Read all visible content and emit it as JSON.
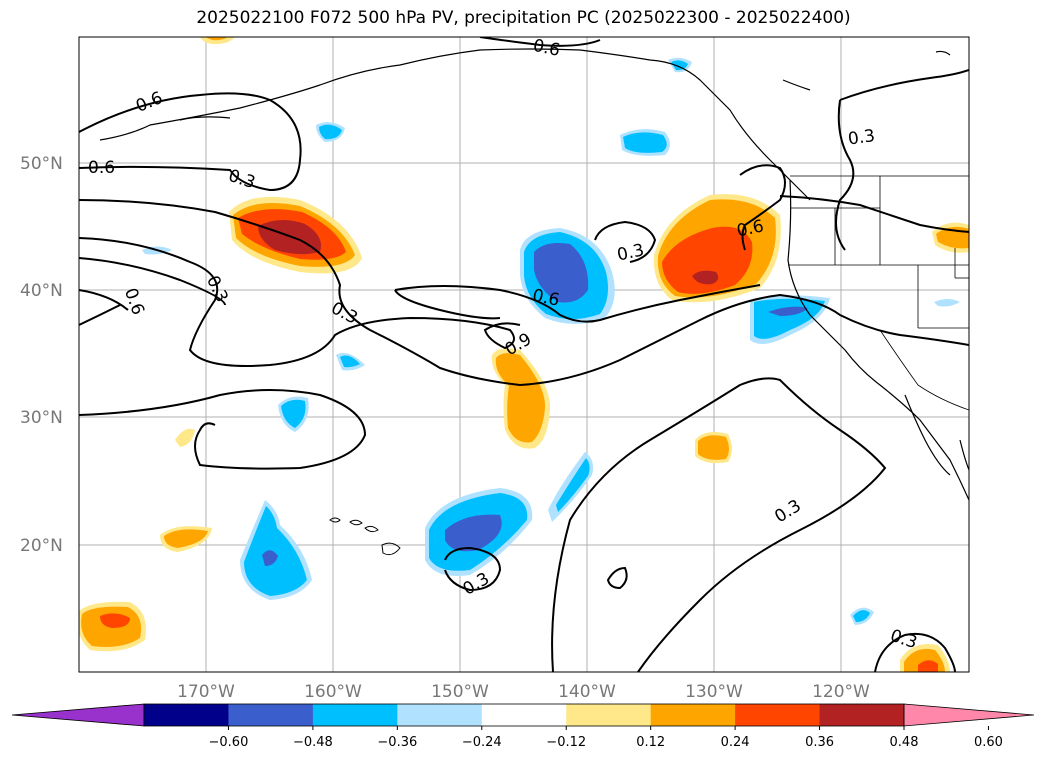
{
  "title": "2025022100 F072 500 hPa PV, precipitation PC (2025022300 - 2025022400)",
  "lat_labels": [
    "50°N",
    "40°N",
    "30°N",
    "20°N"
  ],
  "lon_labels": [
    "170°W",
    "160°W",
    "150°W",
    "140°W",
    "130°W",
    "120°W"
  ],
  "contour_labels": [
    "0.6",
    "0.6",
    "0.6",
    "0.3",
    "0.3",
    "0.6",
    "0.3",
    "0.3",
    "0.6",
    "0.6",
    "0.3",
    "0.9",
    "0.3",
    "0.3",
    "0.3"
  ],
  "colorbar": {
    "ticks": [
      "−0.60",
      "−0.48",
      "−0.36",
      "−0.24",
      "−0.12",
      "0.12",
      "0.24",
      "0.36",
      "0.48",
      "0.60"
    ],
    "colors": [
      "#9932CC",
      "#00008B",
      "#3A5FCD",
      "#00BFFF",
      "#B0E2FF",
      "#FFFFFF",
      "#FFE88A",
      "#FFA500",
      "#FF4500",
      "#B22222",
      "#FF88AA"
    ]
  },
  "colors": {
    "pos_low": "#FFE88A",
    "pos_mid": "#FFA500",
    "pos_high": "#FF4500",
    "pos_max": "#B22222",
    "neg_low": "#B0E2FF",
    "neg_mid": "#00BFFF",
    "neg_high": "#3A5FCD"
  }
}
